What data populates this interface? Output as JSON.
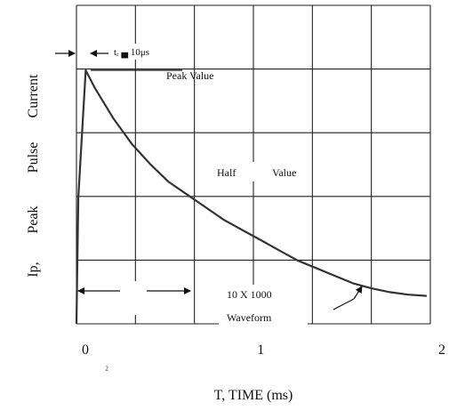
{
  "chart_data": {
    "type": "line",
    "title": "",
    "xlabel": "T, TIME (ms)",
    "ylabel_words": [
      "Ip,",
      "Peak",
      "Pulse",
      "Current"
    ],
    "x_ticks": [
      "0",
      "1",
      "2"
    ],
    "x_tick_values": [
      0,
      1,
      2
    ],
    "stray_mark": "₂",
    "xlim": [
      0,
      1.92
    ],
    "ylim": [
      0,
      1.0
    ],
    "grid": true,
    "series": [
      {
        "x": [
          0,
          0.01,
          0.05,
          0.1,
          0.2,
          0.3,
          0.4,
          0.5,
          0.6,
          0.7,
          0.8,
          0.9,
          1.0,
          1.1,
          1.2,
          1.3,
          1.4,
          1.5,
          1.6,
          1.7,
          1.8,
          1.9
        ],
        "y": [
          0,
          0.5,
          1.0,
          0.93,
          0.81,
          0.71,
          0.63,
          0.56,
          0.51,
          0.46,
          0.41,
          0.37,
          0.33,
          0.29,
          0.25,
          0.22,
          0.19,
          0.16,
          0.14,
          0.125,
          0.115,
          0.11
        ]
      }
    ],
    "annotations": {
      "rise_time": "tᵣ ▄ 10μs",
      "peak_value": "Peak Value",
      "half_word": "Half",
      "value_word": "Value",
      "waveform_line1": "10 X 1000",
      "waveform_line2": "Waveform"
    }
  }
}
